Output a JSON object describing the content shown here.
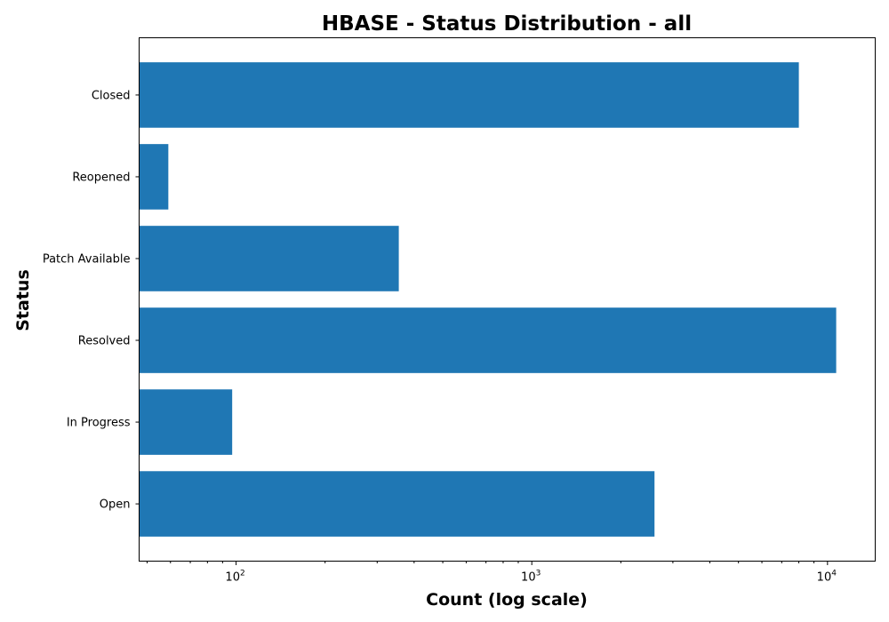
{
  "chart_data": {
    "type": "bar",
    "orientation": "horizontal",
    "title": "HBASE - Status Distribution - all",
    "xlabel": "Count (log scale)",
    "ylabel": "Status",
    "x_scale": "log",
    "xlim": [
      47,
      14500
    ],
    "grid": false,
    "categories": [
      "Closed",
      "Reopened",
      "Patch Available",
      "Resolved",
      "In Progress",
      "Open"
    ],
    "values": [
      8000,
      59,
      355,
      10700,
      97,
      2600
    ],
    "color": "#1f77b4",
    "major_ticks": [
      {
        "value": 100,
        "base": "10",
        "exp": "2"
      },
      {
        "value": 1000,
        "base": "10",
        "exp": "3"
      },
      {
        "value": 10000,
        "base": "10",
        "exp": "4"
      }
    ],
    "minor_ticks": [
      50,
      60,
      70,
      80,
      90,
      200,
      300,
      400,
      500,
      600,
      700,
      800,
      900,
      2000,
      3000,
      4000,
      5000,
      6000,
      7000,
      8000,
      9000
    ]
  }
}
